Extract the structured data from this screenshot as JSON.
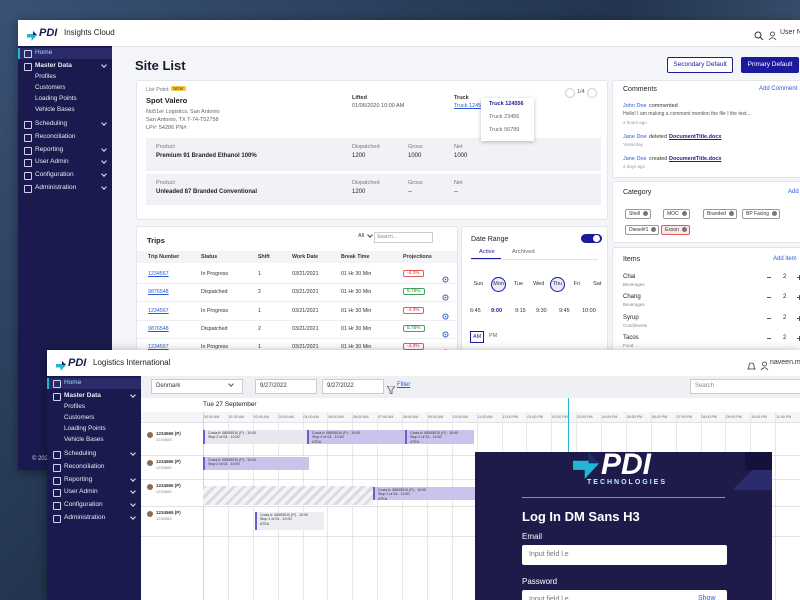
{
  "app1": {
    "brand": "PDI",
    "product": "Insights Cloud",
    "user": "User Na",
    "nav": [
      "Home",
      "Master Data",
      "Profiles",
      "Customers",
      "Loading Points",
      "Vehicle Bases",
      "Scheduling",
      "Reconciliation",
      "Reporting",
      "User Admin",
      "Configuration",
      "Administration"
    ],
    "copyright": "© 2022",
    "page_title": "Site List",
    "buttons": [
      "Secondary Default",
      "Primary Default"
    ],
    "site": {
      "list_point_label": "List Point",
      "badge": "NEW",
      "name": "Spot Valero",
      "address": [
        "No51er Logistics, San Antonio",
        "San Antonio, TX  T-74-T52758",
        "LP#: 54286     PN#:"
      ],
      "lifted_label": "Lifted",
      "lifted_value": "01/06/2020 10:00 AM",
      "truck_label": "Truck",
      "truck_link": "Truck 1245",
      "pager": "1/4",
      "truck_options": [
        "Truck 124556",
        "Truck 23456",
        "Truck 56789"
      ],
      "products": [
        {
          "product_label": "Product",
          "product": "Premium 91 Branded Ethanol 100%",
          "dispatched_label": "Dispatched",
          "dispatched": "1200",
          "gross_label": "Gross",
          "gross": "1000",
          "net_label": "Net",
          "net": "1000"
        },
        {
          "product_label": "Product",
          "product": "Unleaded 87 Branded Conventional",
          "dispatched_label": "Dispatched",
          "dispatched": "1200",
          "gross_label": "Gross",
          "gross": "--",
          "net_label": "Net",
          "net": "--"
        }
      ]
    },
    "trips": {
      "title": "Trips",
      "filter": "All",
      "search": "Search...",
      "columns": [
        "Trip Number",
        "Status",
        "Shift",
        "Work Date",
        "Break Time",
        "Projections"
      ],
      "rows": [
        [
          "1234567",
          "In Progress",
          "1",
          "03/21/2021",
          "01 Hr 30 Min",
          "-4.3%"
        ],
        [
          "9876548",
          "Dispatched",
          "2",
          "03/21/2021",
          "01 Hr 30 Min",
          "5.75%"
        ],
        [
          "1234567",
          "In Progress",
          "1",
          "03/21/2021",
          "01 Hr 30 Min",
          "-4.3%"
        ],
        [
          "9876548",
          "Dispatched",
          "2",
          "03/21/2021",
          "01 Hr 30 Min",
          "5.75%"
        ],
        [
          "1234567",
          "In Progress",
          "1",
          "03/21/2021",
          "01 Hr 30 Min",
          "-4.3%"
        ]
      ]
    },
    "date_range": {
      "title": "Date Range",
      "tabs": [
        "Active",
        "Archived"
      ],
      "days": [
        "Sun",
        "Mon",
        "Tue",
        "Wed",
        "Thu",
        "Fri",
        "Sat"
      ],
      "times": [
        "6:45",
        "9:00",
        "9:15",
        "9:30",
        "9:45",
        "10:00"
      ],
      "ampm": [
        "AM",
        "PM"
      ]
    },
    "comments": {
      "title": "Comments",
      "add": "Add Comment",
      "items": [
        {
          "user": "John Doe",
          "action": "commented",
          "text": "Hello! I am making a comment mention the file I the text...",
          "time": "2 hours ago"
        },
        {
          "user": "Jane Doe",
          "action": "deleted",
          "file": "DocumentTitle.docx",
          "time": "Yesterday"
        },
        {
          "user": "Jane Doe",
          "action": "created",
          "file": "DocumentTitle.docx",
          "time": "2 days ago"
        }
      ]
    },
    "category": {
      "title": "Category",
      "add": "Add",
      "tags": [
        "Shell",
        "MOC",
        "Branded",
        "BP Facing",
        "Diesel#1",
        "Exxon"
      ]
    },
    "items": {
      "title": "Items",
      "add": "Add item",
      "rows": [
        {
          "name": "Chai",
          "type": "Beverages",
          "qty": "2"
        },
        {
          "name": "Chang",
          "type": "Beverages",
          "qty": "2"
        },
        {
          "name": "Syrup",
          "type": "Condiments",
          "qty": "2"
        },
        {
          "name": "Tacos",
          "type": "Food",
          "qty": "2"
        }
      ]
    }
  },
  "app2": {
    "brand": "PDI",
    "product": "Logistics International",
    "user": "naveen.mu",
    "nav": [
      "Home",
      "Master Data",
      "Profiles",
      "Customers",
      "Loading Points",
      "Vehicle Bases",
      "Scheduling",
      "Reconciliation",
      "Reporting",
      "User Admin",
      "Configuration",
      "Administration"
    ],
    "filters": {
      "location": "Denmark",
      "start": "9/27/2022",
      "end": "9/27/2022",
      "filter": "Filter",
      "search": "Search"
    },
    "day": "Tue 27 September",
    "times": [
      "00:00 AM",
      "01:00 AM",
      "02:00 AM",
      "03:00 AM",
      "04:00 AM",
      "05:00 AM",
      "06:00 AM",
      "07:00 AM",
      "08:00 AM",
      "09:00 AM",
      "10:00 AM",
      "11:00 AM",
      "12:00 PM",
      "01:00 PM",
      "02:00 PM",
      "03:00 PM",
      "04:00 PM",
      "05:00 PM",
      "06:00 PM",
      "07:00 PM",
      "08:00 PM",
      "09:00 PM",
      "10:00 PM",
      "11:00 PM"
    ],
    "drivers": [
      {
        "id": "1234565 (P)",
        "sub": "1234565"
      },
      {
        "id": "1234565 (P)",
        "sub": "1234565"
      },
      {
        "id": "1234565 (P)",
        "sub": "1234565"
      },
      {
        "id": "1234565 (P)",
        "sub": "1234565"
      }
    ],
    "tasks": [
      {
        "lines": [
          "Cocia #: 08505010 (P) - 10:00",
          "Stop 2 of 04 - 10:00"
        ]
      },
      {
        "lines": [
          "Cocia #: 08505010 (P) - 10:00",
          "Stop 2 of 04 - 10:00",
          "ATEA"
        ]
      },
      {
        "lines": [
          "Cocia #: 08505010 (P) - 10:00",
          "Stop 2 of 04 - 10:00",
          "ATEA"
        ]
      },
      {
        "lines": [
          "Cocia #: 08505010 (P) - 10:00",
          "Stop 2 of 04 - 10:00"
        ]
      },
      {
        "lines": [
          "Cocia #: 08505010 (P) - 10:00",
          "Stop 2 of 04 - 10:00",
          "ATEA"
        ]
      },
      {
        "lines": [
          "Cocia #: 08505010 (P) - 10:00",
          "Stop 2 of 04 - 10:00",
          "ATEA"
        ]
      }
    ]
  },
  "login": {
    "logo": "PDI",
    "tagline": "TECHNOLOGIES",
    "title": "Log In DM Sans H3",
    "email_label": "Email",
    "email_placeholder": "Input field l.e",
    "password_label": "Password",
    "password_placeholder": "Input field l.e",
    "show": "Show"
  }
}
